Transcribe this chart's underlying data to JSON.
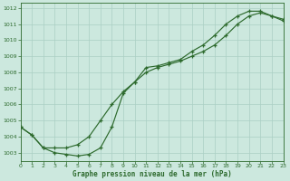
{
  "line1_x": [
    0,
    1,
    2,
    3,
    4,
    5,
    6,
    7,
    8,
    9,
    10,
    11,
    12,
    13,
    14,
    15,
    16,
    17,
    18,
    19,
    20,
    21,
    22,
    23
  ],
  "line1_y": [
    1004.6,
    1004.1,
    1003.3,
    1003.3,
    1003.3,
    1003.5,
    1004.0,
    1005.0,
    1006.0,
    1006.8,
    1007.4,
    1008.0,
    1008.3,
    1008.5,
    1008.7,
    1009.0,
    1009.3,
    1009.7,
    1010.3,
    1011.0,
    1011.5,
    1011.7,
    1011.5,
    1011.2
  ],
  "line2_x": [
    0,
    1,
    2,
    3,
    4,
    5,
    6,
    7,
    8,
    9,
    10,
    11,
    12,
    13,
    14,
    15,
    16,
    17,
    18,
    19,
    20,
    21,
    22,
    23
  ],
  "line2_y": [
    1004.6,
    1004.1,
    1003.3,
    1003.0,
    1002.9,
    1002.8,
    1002.9,
    1003.3,
    1004.6,
    1006.7,
    1007.4,
    1008.3,
    1008.4,
    1008.6,
    1008.8,
    1009.3,
    1009.7,
    1010.3,
    1011.0,
    1011.5,
    1011.8,
    1011.8,
    1011.5,
    1011.3
  ],
  "xlim": [
    0,
    23
  ],
  "ylim": [
    1002.5,
    1012.3
  ],
  "yticks": [
    1003,
    1004,
    1005,
    1006,
    1007,
    1008,
    1009,
    1010,
    1011,
    1012
  ],
  "xticks": [
    0,
    1,
    2,
    3,
    4,
    5,
    6,
    7,
    8,
    9,
    10,
    11,
    12,
    13,
    14,
    15,
    16,
    17,
    18,
    19,
    20,
    21,
    22,
    23
  ],
  "xlabel": "Graphe pression niveau de la mer (hPa)",
  "line_color": "#2d6a2d",
  "marker": "+",
  "bg_color": "#cce8de",
  "grid_color": "#aacfc4",
  "tick_color": "#2d6a2d",
  "label_color": "#2d6a2d"
}
